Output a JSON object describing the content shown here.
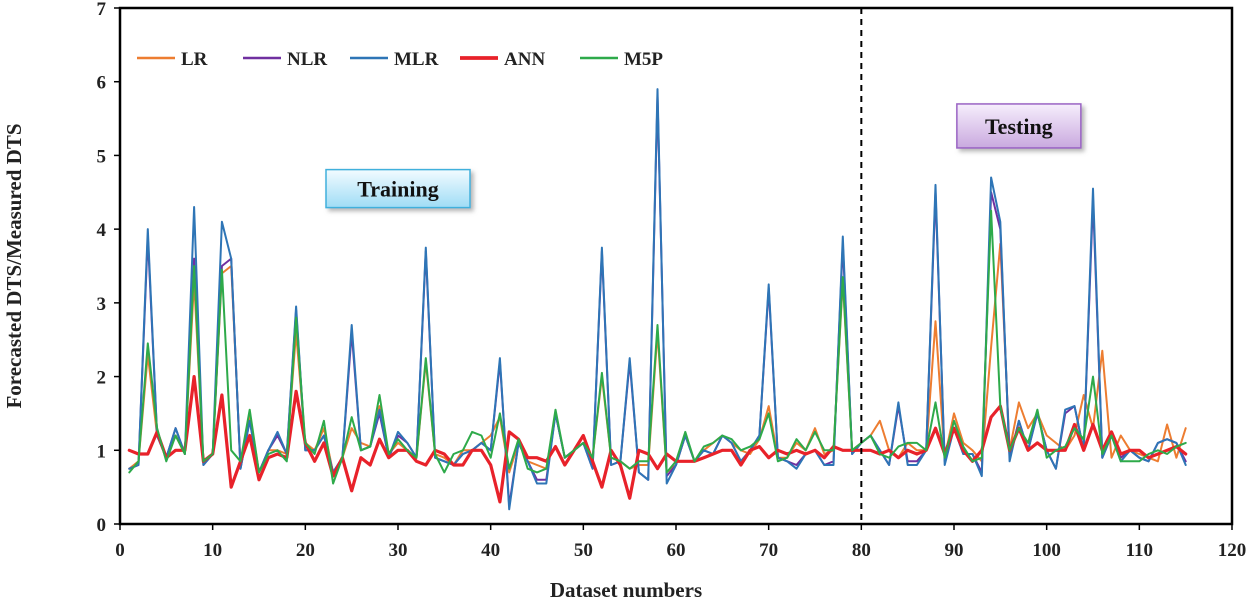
{
  "chart_data": {
    "type": "line",
    "xlabel": "Dataset numbers",
    "ylabel": "Forecasted DTS/Measured DTS",
    "xlim": [
      0,
      120
    ],
    "ylim": [
      0,
      7
    ],
    "xticks": [
      0,
      10,
      20,
      30,
      40,
      50,
      60,
      70,
      80,
      90,
      100,
      110,
      120
    ],
    "yticks": [
      0,
      1,
      2,
      3,
      4,
      5,
      6,
      7
    ],
    "grid": false,
    "legend_position": "top-left",
    "divider_x": 80,
    "annotations": [
      {
        "id": "training",
        "text": "Training",
        "x": 30,
        "y": 4.55
      },
      {
        "id": "testing",
        "text": "Testing",
        "x": 97,
        "y": 5.4
      }
    ],
    "x": [
      1,
      2,
      3,
      4,
      5,
      6,
      7,
      8,
      9,
      10,
      11,
      12,
      13,
      14,
      15,
      16,
      17,
      18,
      19,
      20,
      21,
      22,
      23,
      24,
      25,
      26,
      27,
      28,
      29,
      30,
      31,
      32,
      33,
      34,
      35,
      36,
      37,
      38,
      39,
      40,
      41,
      42,
      43,
      44,
      45,
      46,
      47,
      48,
      49,
      50,
      51,
      52,
      53,
      54,
      55,
      56,
      57,
      58,
      59,
      60,
      61,
      62,
      63,
      64,
      65,
      66,
      67,
      68,
      69,
      70,
      71,
      72,
      73,
      74,
      75,
      76,
      77,
      78,
      79,
      80,
      81,
      82,
      83,
      84,
      85,
      86,
      87,
      88,
      89,
      90,
      91,
      92,
      93,
      94,
      95,
      96,
      97,
      98,
      99,
      100,
      101,
      102,
      103,
      104,
      105,
      106,
      107,
      108,
      109,
      110,
      111,
      112,
      113,
      114,
      115
    ],
    "series": [
      {
        "name": "LR",
        "color": "#ed7d31",
        "width": 2,
        "values": [
          0.75,
          0.85,
          2.3,
          1.2,
          0.9,
          1.2,
          0.95,
          3.3,
          0.85,
          0.95,
          3.4,
          3.5,
          0.8,
          1.5,
          0.7,
          1.0,
          1.0,
          0.95,
          2.6,
          1.1,
          1.0,
          1.3,
          0.7,
          0.9,
          1.3,
          1.1,
          1.05,
          1.6,
          0.95,
          1.1,
          1.0,
          0.9,
          2.2,
          0.95,
          0.9,
          0.8,
          1.0,
          1.0,
          1.1,
          1.2,
          1.45,
          0.7,
          1.1,
          0.85,
          0.8,
          0.75,
          1.5,
          0.9,
          1.0,
          1.1,
          0.9,
          2.0,
          0.9,
          0.85,
          0.75,
          0.8,
          0.8,
          2.6,
          0.7,
          0.8,
          1.2,
          0.85,
          1.0,
          1.1,
          1.2,
          1.1,
          1.0,
          0.95,
          1.15,
          1.6,
          0.9,
          0.9,
          1.1,
          1.0,
          1.3,
          0.95,
          1.0,
          3.3,
          1.0,
          1.1,
          1.2,
          1.4,
          1.0,
          0.9,
          1.1,
          1.0,
          1.0,
          2.75,
          0.9,
          1.5,
          1.1,
          1.0,
          0.85,
          2.4,
          3.8,
          1.0,
          1.65,
          1.3,
          1.5,
          1.2,
          1.1,
          1.0,
          1.2,
          1.75,
          1.3,
          2.35,
          0.9,
          1.2,
          1.0,
          0.95,
          0.9,
          0.85,
          1.35,
          0.9,
          1.3
        ]
      },
      {
        "name": "NLR",
        "color": "#7030a0",
        "width": 2,
        "values": [
          0.75,
          0.8,
          3.9,
          1.2,
          0.9,
          1.3,
          0.95,
          3.6,
          0.8,
          0.95,
          3.5,
          3.6,
          0.75,
          1.4,
          0.7,
          1.0,
          1.2,
          0.95,
          2.9,
          1.0,
          1.0,
          1.2,
          0.7,
          0.9,
          2.6,
          1.0,
          1.05,
          1.5,
          0.9,
          1.2,
          1.1,
          0.9,
          3.7,
          0.9,
          0.85,
          0.8,
          0.95,
          1.0,
          1.1,
          1.0,
          2.2,
          0.25,
          1.1,
          0.85,
          0.6,
          0.6,
          1.5,
          0.9,
          1.0,
          1.1,
          0.75,
          3.7,
          0.8,
          0.85,
          2.2,
          0.7,
          0.6,
          5.8,
          0.65,
          0.8,
          1.2,
          0.85,
          1.0,
          0.95,
          1.2,
          1.1,
          0.85,
          1.0,
          1.2,
          3.2,
          0.9,
          0.85,
          0.8,
          0.95,
          1.0,
          0.8,
          0.85,
          3.8,
          0.95,
          1.1,
          1.2,
          1.0,
          0.8,
          1.6,
          0.85,
          0.85,
          1.0,
          4.5,
          0.85,
          1.3,
          0.95,
          0.95,
          0.7,
          4.5,
          4.0,
          0.9,
          1.4,
          1.0,
          1.5,
          1.0,
          0.75,
          1.5,
          1.6,
          1.0,
          4.4,
          0.9,
          1.2,
          0.9,
          1.0,
          0.9,
          0.85,
          1.1,
          1.15,
          1.1,
          0.85
        ]
      },
      {
        "name": "MLR",
        "color": "#2e75b6",
        "width": 2,
        "values": [
          0.75,
          0.8,
          4.0,
          1.2,
          0.9,
          1.3,
          0.95,
          4.3,
          0.8,
          0.95,
          4.1,
          3.6,
          0.75,
          1.4,
          0.7,
          1.0,
          1.25,
          0.95,
          2.95,
          1.0,
          1.0,
          1.2,
          0.7,
          0.9,
          2.7,
          1.0,
          1.05,
          1.55,
          0.9,
          1.25,
          1.1,
          0.9,
          3.75,
          0.9,
          0.85,
          0.8,
          0.95,
          1.0,
          1.1,
          1.0,
          2.25,
          0.2,
          1.1,
          0.85,
          0.55,
          0.55,
          1.5,
          0.9,
          1.0,
          1.1,
          0.75,
          3.75,
          0.8,
          0.85,
          2.25,
          0.7,
          0.6,
          5.9,
          0.55,
          0.8,
          1.2,
          0.85,
          1.0,
          0.95,
          1.2,
          1.1,
          0.85,
          1.0,
          1.2,
          3.25,
          0.9,
          0.85,
          0.75,
          0.95,
          1.0,
          0.8,
          0.8,
          3.9,
          0.95,
          1.1,
          1.2,
          1.0,
          0.8,
          1.65,
          0.8,
          0.8,
          1.0,
          4.6,
          0.8,
          1.3,
          0.95,
          0.95,
          0.65,
          4.7,
          4.1,
          0.85,
          1.4,
          1.0,
          1.5,
          1.0,
          0.75,
          1.55,
          1.6,
          1.0,
          4.55,
          0.9,
          1.2,
          0.85,
          1.0,
          0.9,
          0.85,
          1.1,
          1.15,
          1.1,
          0.8
        ]
      },
      {
        "name": "ANN",
        "color": "#e8222a",
        "width": 3.2,
        "values": [
          1.0,
          0.95,
          0.95,
          1.25,
          0.9,
          1.0,
          1.0,
          2.0,
          0.85,
          0.95,
          1.75,
          0.5,
          0.85,
          1.2,
          0.6,
          0.9,
          0.95,
          0.9,
          1.8,
          1.1,
          0.85,
          1.1,
          0.65,
          0.9,
          0.45,
          0.9,
          0.8,
          1.15,
          0.9,
          1.0,
          1.0,
          0.85,
          0.8,
          1.0,
          0.95,
          0.8,
          0.8,
          1.0,
          1.0,
          0.8,
          0.3,
          1.25,
          1.15,
          0.9,
          0.9,
          0.85,
          1.05,
          0.8,
          1.0,
          1.2,
          0.85,
          0.5,
          1.0,
          0.8,
          0.35,
          1.0,
          0.95,
          0.75,
          0.95,
          0.85,
          0.85,
          0.85,
          0.9,
          0.95,
          1.0,
          1.0,
          0.8,
          1.0,
          1.05,
          0.9,
          1.0,
          0.95,
          1.0,
          0.95,
          1.0,
          0.9,
          1.05,
          1.0,
          1.0,
          1.0,
          1.0,
          0.95,
          1.0,
          0.9,
          1.0,
          0.95,
          1.0,
          1.3,
          0.95,
          1.3,
          1.0,
          0.85,
          1.0,
          1.45,
          1.6,
          1.0,
          1.3,
          1.0,
          1.1,
          1.0,
          1.0,
          1.0,
          1.35,
          1.0,
          1.35,
          1.0,
          1.25,
          0.95,
          1.0,
          1.0,
          0.9,
          0.95,
          1.0,
          1.05,
          0.95
        ]
      },
      {
        "name": "M5P",
        "color": "#2eaa4a",
        "width": 2,
        "values": [
          0.7,
          0.85,
          2.45,
          1.3,
          0.85,
          1.2,
          0.95,
          3.5,
          0.85,
          0.95,
          3.45,
          1.0,
          0.85,
          1.55,
          0.7,
          0.95,
          1.0,
          0.85,
          2.8,
          1.1,
          0.95,
          1.4,
          0.55,
          0.9,
          1.45,
          1.0,
          1.05,
          1.75,
          0.95,
          1.15,
          1.0,
          0.9,
          2.25,
          0.95,
          0.7,
          0.95,
          1.0,
          1.25,
          1.2,
          0.9,
          1.5,
          0.75,
          1.15,
          0.75,
          0.7,
          0.75,
          1.55,
          0.9,
          1.0,
          1.1,
          0.9,
          2.05,
          0.9,
          0.85,
          0.75,
          0.85,
          0.85,
          2.7,
          0.7,
          0.85,
          1.25,
          0.85,
          1.05,
          1.1,
          1.2,
          1.15,
          1.0,
          1.05,
          1.15,
          1.5,
          0.85,
          0.9,
          1.15,
          1.0,
          1.25,
          1.0,
          1.0,
          3.35,
          1.0,
          1.1,
          1.2,
          0.95,
          0.9,
          1.05,
          1.1,
          1.1,
          1.0,
          1.65,
          0.9,
          1.4,
          1.05,
          0.85,
          0.9,
          4.25,
          1.6,
          1.0,
          1.3,
          1.1,
          1.55,
          0.9,
          1.0,
          1.05,
          1.3,
          1.15,
          2.0,
          0.95,
          1.2,
          0.85,
          0.85,
          0.85,
          0.95,
          1.0,
          0.95,
          1.05,
          1.1
        ]
      }
    ]
  }
}
